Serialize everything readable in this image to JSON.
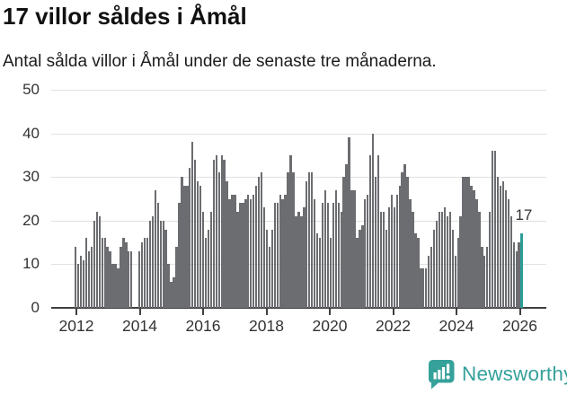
{
  "header": {
    "title": "17 villor såldes i Åmål",
    "subtitle": "Antal sålda villor i Åmål under de senaste tre månaderna."
  },
  "chart_data": {
    "type": "bar",
    "title": "17 villor såldes i Åmål",
    "x_start": "2012-01",
    "x_interval": "month",
    "values": [
      14,
      10,
      12,
      11,
      16,
      13,
      14,
      20,
      22,
      21,
      16,
      16,
      14,
      13,
      10,
      10,
      9,
      14,
      16,
      15,
      13,
      13,
      0,
      0,
      13,
      15,
      16,
      16,
      20,
      21,
      27,
      24,
      20,
      20,
      18,
      10,
      6,
      7,
      14,
      24,
      30,
      28,
      28,
      32,
      38,
      34,
      29,
      28,
      22,
      16,
      18,
      22,
      34,
      35,
      31,
      35,
      34,
      29,
      25,
      26,
      26,
      22,
      24,
      24,
      25,
      26,
      25,
      26,
      28,
      30,
      31,
      23,
      18,
      14,
      18,
      24,
      24,
      26,
      25,
      26,
      31,
      35,
      31,
      21,
      22,
      21,
      23,
      29,
      31,
      31,
      25,
      17,
      16,
      24,
      27,
      24,
      16,
      24,
      27,
      24,
      22,
      30,
      33,
      39,
      27,
      27,
      16,
      18,
      19,
      25,
      26,
      35,
      40,
      30,
      35,
      22,
      22,
      18,
      23,
      26,
      23,
      26,
      28,
      31,
      33,
      30,
      25,
      22,
      17,
      16,
      9,
      9,
      9,
      12,
      14,
      18,
      20,
      22,
      22,
      23,
      21,
      22,
      18,
      12,
      16,
      21,
      30,
      30,
      30,
      28,
      27,
      25,
      22,
      14,
      12,
      14,
      22,
      36,
      36,
      30,
      28,
      29,
      27,
      25,
      21,
      15,
      13,
      15,
      17
    ],
    "highlight": {
      "index": 168,
      "value": 17,
      "label": "17"
    },
    "y_ticks": [
      0,
      10,
      20,
      30,
      40,
      50
    ],
    "ylim": [
      0,
      50
    ],
    "x_ticks": [
      2012,
      2014,
      2016,
      2018,
      2020,
      2022,
      2024,
      2026
    ],
    "grid": true,
    "legend": "none",
    "colors": {
      "bar": "#6c6d71",
      "highlight": "#2b9e96",
      "grid": "#e1e1e1",
      "axis": "#3f3f3f",
      "text": "#333333"
    }
  },
  "footer": {
    "brand": "Newsworthy",
    "brand_color": "#35a19a"
  }
}
